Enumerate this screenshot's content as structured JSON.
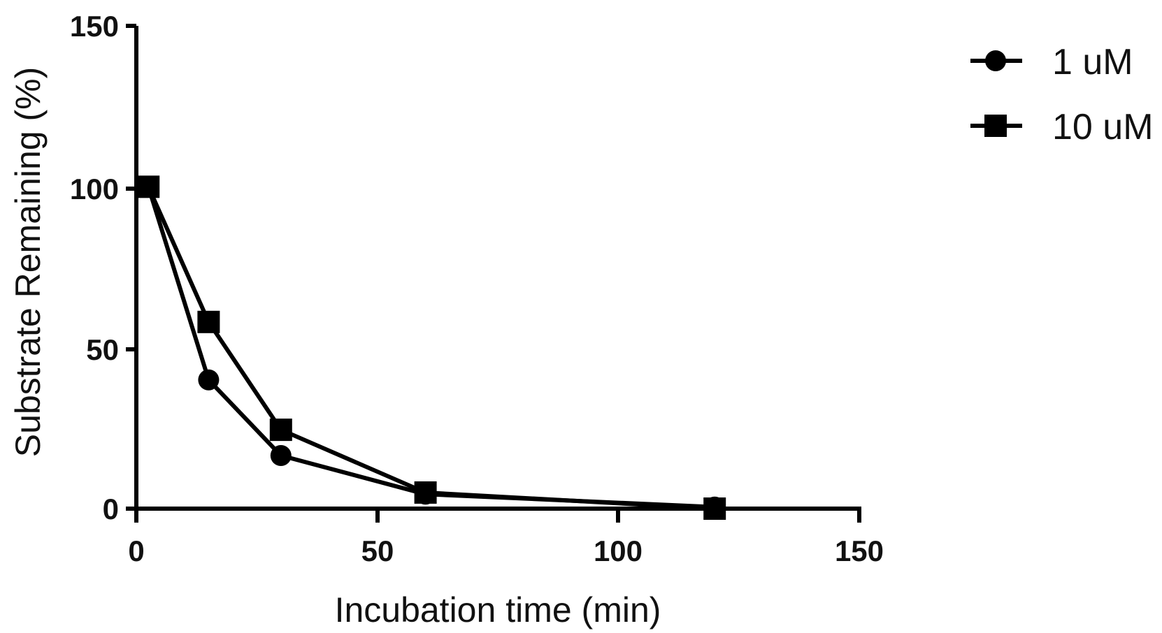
{
  "chart_data": {
    "type": "line",
    "title": "",
    "xlabel": "Incubation time (min)",
    "ylabel": "Substrate Remaining (%)",
    "xlim": [
      0,
      150
    ],
    "ylim": [
      0,
      150
    ],
    "xticks": [
      0,
      50,
      100,
      150
    ],
    "yticks": [
      0,
      50,
      100,
      150
    ],
    "grid": false,
    "legend_position": "top-right, outside plot",
    "series": [
      {
        "name": "1 uM",
        "marker": "circle",
        "color": "#000000",
        "x": [
          2.5,
          15,
          30,
          60,
          120
        ],
        "values": [
          100,
          40,
          16.5,
          4.5,
          0.5
        ]
      },
      {
        "name": "10 uM",
        "marker": "square",
        "color": "#000000",
        "x": [
          2.5,
          15,
          30,
          60,
          120
        ],
        "values": [
          100,
          58,
          24.5,
          5,
          0
        ]
      }
    ]
  },
  "labels": {
    "xlabel": "Incubation time (min)",
    "ylabel": "Substrate Remaining (%)",
    "xticks": [
      "0",
      "50",
      "100",
      "150"
    ],
    "yticks": [
      "0",
      "50",
      "100",
      "150"
    ],
    "legend": [
      "1 uM",
      "10 uM"
    ]
  }
}
